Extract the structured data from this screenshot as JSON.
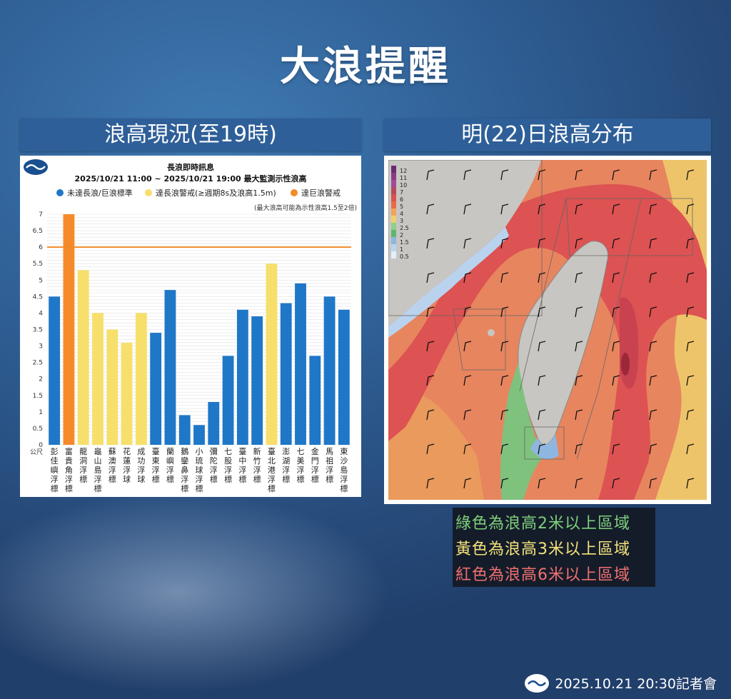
{
  "page": {
    "title": "大浪提醒",
    "left_header": "浪高現況(至19時)",
    "right_header": "明(22)日浪高分布",
    "footer_text": "2025.10.21 20:30記者會"
  },
  "map_legend": {
    "scale_labels": [
      "12",
      "11",
      "10",
      "7",
      "6",
      "5",
      "4",
      "3",
      "2.5",
      "2",
      "1.5",
      "1",
      "0.5"
    ],
    "scale_colors": [
      "#6a2c70",
      "#8b3a87",
      "#a24a9a",
      "#b44a5a",
      "#d9534f",
      "#e96a4a",
      "#f0a35a",
      "#f0d070",
      "#8fcf8a",
      "#5fb56f",
      "#8fb6e0",
      "#b9d3ef",
      "#e3eefb"
    ],
    "lines": [
      {
        "text": "綠色為浪高2米以上區域",
        "color": "#7fd07a"
      },
      {
        "text": "黃色為浪高3米以上區域",
        "color": "#f4e27a"
      },
      {
        "text": "紅色為浪高6米以上區域",
        "color": "#f07070"
      }
    ]
  },
  "chart_data": {
    "type": "bar",
    "title": "長浪即時訊息",
    "subtitle": "2025/10/21 11:00 ~ 2025/10/21 19:00 最大監測示性浪高",
    "note": "(最大浪高可能為示性浪高1.5至2倍)",
    "ylabel": "公尺",
    "ylim": [
      0,
      7
    ],
    "yticks": [
      "0",
      "0.5",
      "1",
      "1.5",
      "2",
      "2.5",
      "3",
      "3.5",
      "4",
      "4.5",
      "5",
      "5.5",
      "6",
      "6.5",
      "7"
    ],
    "threshold": 6,
    "threshold_color": "#f08a24",
    "legend": [
      {
        "label": "未達長浪/巨浪標準",
        "color": "#1f77c8"
      },
      {
        "label": "達長浪警戒(≥週期8s及浪高1.5m)",
        "color": "#f7df6b"
      },
      {
        "label": "達巨浪警戒",
        "color": "#f58a2a"
      }
    ],
    "categories": [
      "彭佳嶼浮標",
      "富貴角浮標",
      "龍洞浮標",
      "龜山島浮標",
      "蘇澳浮標",
      "花蓮浮球",
      "成功浮球",
      "臺東浮標",
      "蘭嶼浮標",
      "鵝鑾鼻浮標",
      "小琉球浮標",
      "彌陀浮標",
      "七股浮標",
      "臺中浮標",
      "新竹浮標",
      "臺北港浮標",
      "澎湖浮標",
      "七美浮標",
      "金門浮標",
      "馬祖浮標",
      "東沙島浮標"
    ],
    "values": [
      4.5,
      7.0,
      5.3,
      4.0,
      3.5,
      3.1,
      4.0,
      3.4,
      4.7,
      0.9,
      0.6,
      1.3,
      2.7,
      4.1,
      3.9,
      5.5,
      4.3,
      4.9,
      2.7,
      4.5,
      4.1
    ],
    "levels": [
      0,
      2,
      1,
      1,
      1,
      1,
      1,
      0,
      0,
      0,
      0,
      0,
      0,
      0,
      0,
      1,
      0,
      0,
      0,
      0,
      0
    ]
  }
}
